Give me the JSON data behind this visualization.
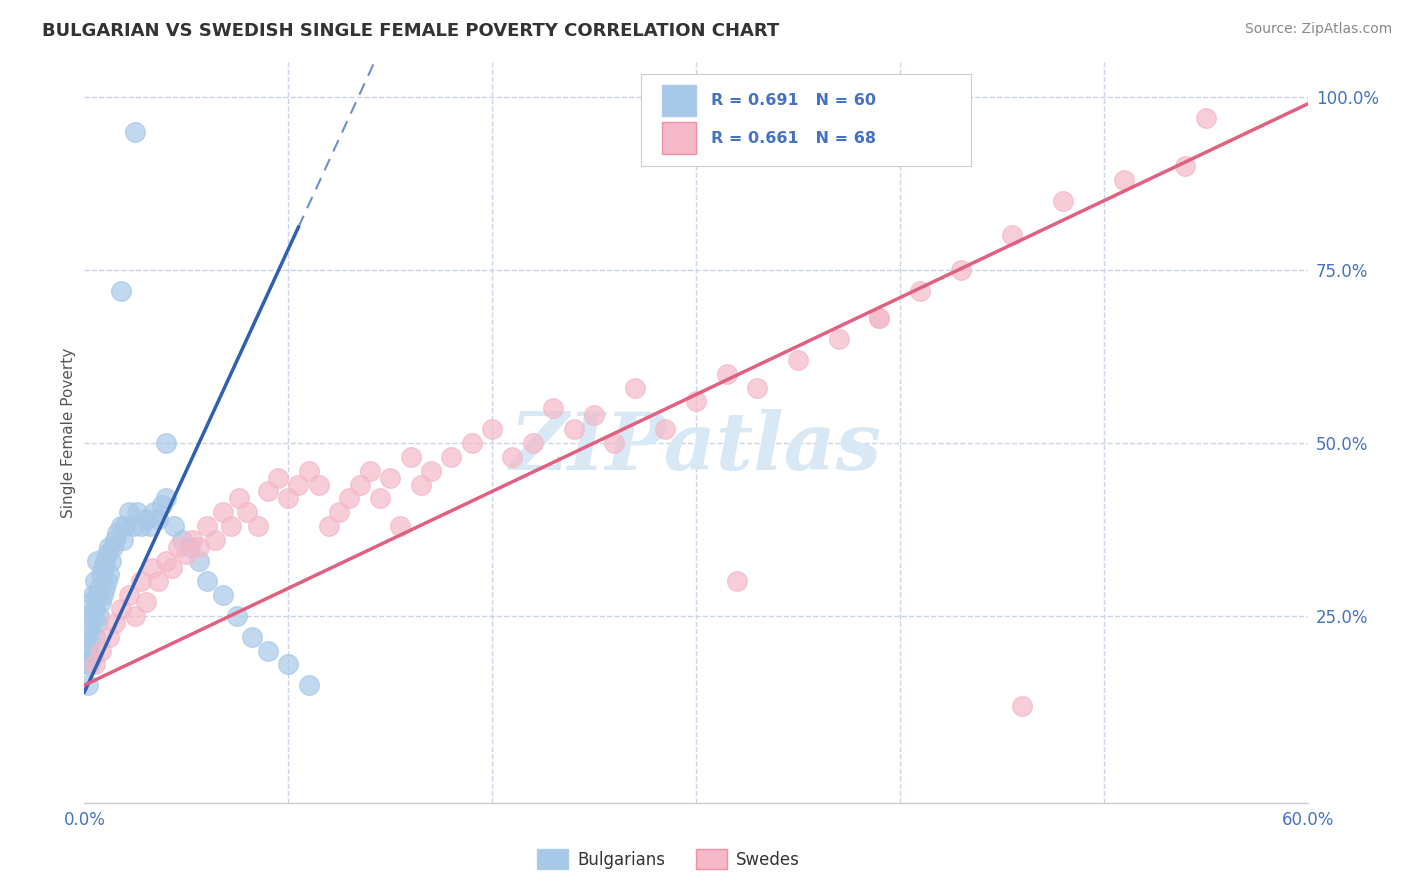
{
  "title": "BULGARIAN VS SWEDISH SINGLE FEMALE POVERTY CORRELATION CHART",
  "source_text": "Source: ZipAtlas.com",
  "ylabel": "Single Female Poverty",
  "xlim": [
    0.0,
    0.6
  ],
  "ylim": [
    -0.02,
    1.05
  ],
  "bg_color": "#ffffff",
  "grid_color": "#c8d4e8",
  "watermark_text": "ZIPatlas",
  "watermark_color": "#c8d4e8",
  "legend_R_blue": "0.691",
  "legend_N_blue": "60",
  "legend_R_pink": "0.661",
  "legend_N_pink": "68",
  "blue_scatter_color": "#a8c8e8",
  "pink_scatter_color": "#f4b8c8",
  "blue_line_color": "#3060b0",
  "pink_line_color": "#e06080",
  "tick_color": "#4472c4",
  "legend_label_blue": "Bulgarians",
  "legend_label_pink": "Swedes",
  "blue_legend_color": "#a8c8e8",
  "pink_legend_color": "#f4b8c8"
}
